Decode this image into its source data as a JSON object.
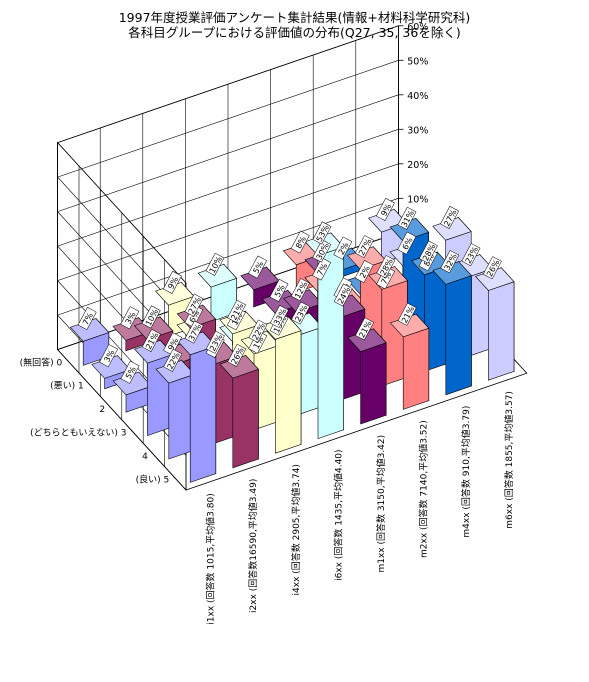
{
  "header": {
    "title_line1": "1997年度授業評価アンケート集計結果(情報+材料科学研究科)",
    "title_line2": "各科目グループにおける評価値の分布(Q27, 35, 36を除く)"
  },
  "chart_data": {
    "type": "bar3d",
    "title": "1997年度授業評価アンケート集計結果(情報+材料科学研究科) 各科目グループにおける評価値の分布(Q27, 35, 36を除く)",
    "zlim": [
      0,
      60
    ],
    "z_ticks": [
      "0%",
      "10%",
      "20%",
      "30%",
      "40%",
      "50%",
      "60%"
    ],
    "grid": true,
    "categories": [
      "(良い) 5",
      "4",
      "(どちらともいえない) 3",
      "2",
      "(悪い) 1",
      "(無回答) 0"
    ],
    "series": [
      {
        "name": "i1xx (回答数 1015,平均値3.80)",
        "color": "#9999ff",
        "values": [
          37,
          22,
          21,
          5,
          3,
          7
        ],
        "labels": [
          "37%",
          "22%",
          "21%",
          "5%",
          "3%",
          "7%"
        ]
      },
      {
        "name": "i2xx (回答数16590,平均値3.49)",
        "color": "#993366",
        "values": [
          26,
          23,
          27,
          9,
          10,
          3
        ],
        "labels": [
          "26%",
          "23%",
          "27%",
          "9%",
          "10%",
          "3%"
        ]
      },
      {
        "name": "i4xx (回答数 2905,平均値3.74)",
        "color": "#ffffcc",
        "values": [
          33,
          22,
          21,
          4,
          6,
          9
        ],
        "labels": [
          "33%",
          "22%",
          "21%",
          "4%",
          "6%",
          "9%"
        ]
      },
      {
        "name": "i6xx (回答数 1435,平均値4.40)",
        "color": "#ccffff",
        "values": [
          53,
          23,
          13,
          1,
          1,
          10
        ],
        "labels": [
          "53%",
          "23%",
          "13%",
          "1%",
          "1%",
          "10%"
        ]
      },
      {
        "name": "m1xx (回答数 3150,平均値3.42)",
        "color": "#660066",
        "values": [
          21,
          24,
          30,
          12,
          5,
          5
        ],
        "labels": [
          "21%",
          "24%",
          "30%",
          "12%",
          "5%",
          "5%"
        ]
      },
      {
        "name": "m2xx (回答数 7140,平均値3.52)",
        "color": "#ff8080",
        "values": [
          21,
          28,
          27,
          8,
          7,
          8
        ],
        "labels": [
          "21%",
          "28%",
          "27%",
          "8%",
          "7%",
          "8%"
        ]
      },
      {
        "name": "m4xx (回答数  910,平均値3.79)",
        "color": "#0066cc",
        "values": [
          32,
          28,
          31,
          7,
          2,
          2
        ],
        "labels": [
          "32%",
          "28%",
          "31%",
          "7%",
          "2%",
          "2%"
        ]
      },
      {
        "name": "m6xx (回答数 1855,平均値3.57)",
        "color": "#ccccff",
        "values": [
          26,
          23,
          27,
          8,
          6,
          9
        ],
        "labels": [
          "26%",
          "23%",
          "27%",
          "8%",
          "6%",
          "9%"
        ]
      }
    ]
  }
}
